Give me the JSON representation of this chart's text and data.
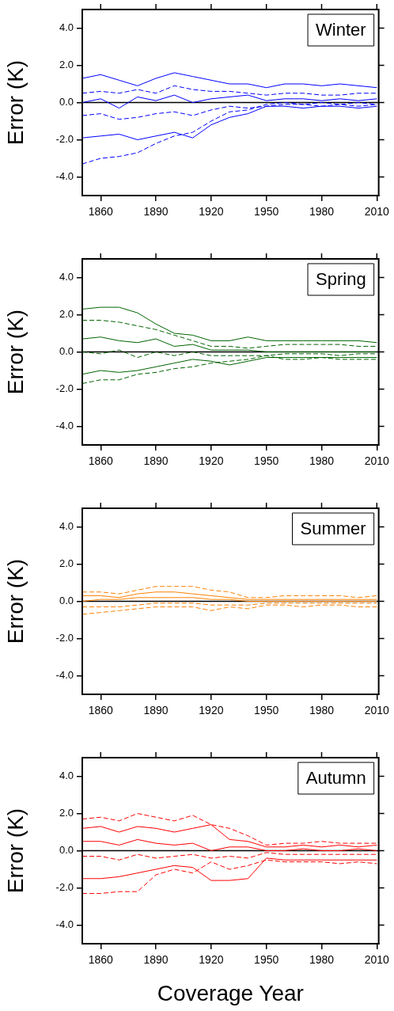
{
  "chart_data": [
    {
      "type": "line",
      "title": "Winter",
      "ylabel": "Error (K)",
      "xlim": [
        1850,
        2011
      ],
      "xticks": [
        1860,
        1890,
        1920,
        1950,
        1980,
        2010
      ],
      "ylim": [
        -5,
        5
      ],
      "yticks": [
        {
          "value": 4,
          "label": "4.0"
        },
        {
          "value": 2,
          "label": "2.0"
        },
        {
          "value": 0,
          "label": "0.0"
        },
        {
          "value": -2,
          "label": "-2.0"
        },
        {
          "value": -4,
          "label": "-4.0"
        }
      ],
      "grid": false,
      "legend": false,
      "ref_lines": [
        {
          "axis": "y",
          "value": 0,
          "color": "#000000"
        }
      ],
      "x": [
        1850,
        1860,
        1870,
        1880,
        1890,
        1900,
        1910,
        1920,
        1930,
        1940,
        1950,
        1960,
        1970,
        1980,
        1990,
        2000,
        2010
      ],
      "series": [
        {
          "color": "#0000ff",
          "line_style": "solid",
          "values": [
            1.3,
            1.5,
            1.2,
            0.9,
            1.3,
            1.6,
            1.4,
            1.2,
            1.0,
            1.0,
            0.8,
            1.0,
            1.0,
            0.9,
            1.0,
            0.9,
            0.8
          ]
        },
        {
          "color": "#0000ff",
          "line_style": "dashed",
          "values": [
            0.5,
            0.6,
            0.5,
            0.7,
            0.5,
            0.9,
            0.7,
            0.6,
            0.6,
            0.5,
            0.4,
            0.5,
            0.5,
            0.4,
            0.4,
            0.5,
            0.5
          ]
        },
        {
          "color": "#0000ff",
          "line_style": "solid",
          "values": [
            0,
            0.2,
            -0.3,
            0.3,
            0.1,
            0.4,
            0,
            0.2,
            0.3,
            0.4,
            0.1,
            0.2,
            0.2,
            0.1,
            0.2,
            0.1,
            0.2
          ]
        },
        {
          "color": "#0000ff",
          "line_style": "dashed",
          "values": [
            -0.7,
            -0.6,
            -0.9,
            -0.8,
            -0.6,
            -0.5,
            -0.7,
            -0.4,
            -0.2,
            -0.3,
            -0.2,
            -0.1,
            -0.1,
            -0.2,
            -0.1,
            -0.2,
            -0.1
          ]
        },
        {
          "color": "#0000ff",
          "line_style": "solid",
          "values": [
            -1.9,
            -1.8,
            -1.7,
            -2.0,
            -1.8,
            -1.6,
            -1.9,
            -1.2,
            -0.8,
            -0.6,
            -0.2,
            -0.2,
            -0.3,
            -0.2,
            -0.2,
            -0.3,
            -0.2
          ]
        },
        {
          "color": "#0000ff",
          "line_style": "dashed",
          "values": [
            -3.3,
            -3.0,
            -2.9,
            -2.7,
            -2.2,
            -1.8,
            -1.6,
            -1.0,
            -0.5,
            -0.4,
            -0.1,
            0,
            -0.1,
            0,
            -0.1,
            0,
            -0.1
          ]
        }
      ]
    },
    {
      "type": "line",
      "title": "Spring",
      "ylabel": "Error (K)",
      "xlim": [
        1850,
        2011
      ],
      "xticks": [
        1860,
        1890,
        1920,
        1950,
        1980,
        2010
      ],
      "ylim": [
        -5,
        5
      ],
      "yticks": [
        {
          "value": 4,
          "label": "4.0"
        },
        {
          "value": 2,
          "label": "2.0"
        },
        {
          "value": 0,
          "label": "0.0"
        },
        {
          "value": -2,
          "label": "-2.0"
        },
        {
          "value": -4,
          "label": "-4.0"
        }
      ],
      "grid": false,
      "legend": false,
      "ref_lines": [
        {
          "axis": "y",
          "value": 0,
          "color": "#000000"
        }
      ],
      "x": [
        1850,
        1860,
        1870,
        1880,
        1890,
        1900,
        1910,
        1920,
        1930,
        1940,
        1950,
        1960,
        1970,
        1980,
        1990,
        2000,
        2010
      ],
      "series": [
        {
          "color": "#006400",
          "line_style": "solid",
          "values": [
            2.3,
            2.4,
            2.4,
            2.1,
            1.5,
            1.0,
            0.9,
            0.6,
            0.6,
            0.8,
            0.6,
            0.6,
            0.6,
            0.6,
            0.6,
            0.6,
            0.5
          ]
        },
        {
          "color": "#006400",
          "line_style": "dashed",
          "values": [
            1.7,
            1.7,
            1.6,
            1.4,
            1.2,
            0.9,
            0.6,
            0.3,
            0.3,
            0.2,
            0.3,
            0.4,
            0.4,
            0.4,
            0.4,
            0.3,
            0.3
          ]
        },
        {
          "color": "#006400",
          "line_style": "solid",
          "values": [
            0.7,
            0.8,
            0.6,
            0.5,
            0.7,
            0.3,
            0.4,
            0.1,
            0.1,
            0.1,
            0,
            0,
            0,
            0,
            0,
            0,
            0
          ]
        },
        {
          "color": "#006400",
          "line_style": "dashed",
          "values": [
            0,
            -0.1,
            0.1,
            -0.3,
            0,
            -0.2,
            0,
            -0.2,
            -0.2,
            -0.2,
            -0.2,
            -0.1,
            -0.1,
            -0.1,
            -0.2,
            -0.1,
            -0.1
          ]
        },
        {
          "color": "#006400",
          "line_style": "solid",
          "values": [
            -1.2,
            -1.0,
            -1.1,
            -1.0,
            -0.8,
            -0.6,
            -0.4,
            -0.5,
            -0.7,
            -0.5,
            -0.3,
            -0.3,
            -0.3,
            -0.3,
            -0.3,
            -0.3,
            -0.3
          ]
        },
        {
          "color": "#006400",
          "line_style": "dashed",
          "values": [
            -1.7,
            -1.5,
            -1.5,
            -1.2,
            -1.1,
            -0.9,
            -0.8,
            -0.6,
            -0.5,
            -0.4,
            -0.2,
            -0.4,
            -0.4,
            -0.3,
            -0.4,
            -0.4,
            -0.4
          ]
        }
      ]
    },
    {
      "type": "line",
      "title": "Summer",
      "ylabel": "Error (K)",
      "xlim": [
        1850,
        2011
      ],
      "xticks": [
        1860,
        1890,
        1920,
        1950,
        1980,
        2010
      ],
      "ylim": [
        -5,
        5
      ],
      "yticks": [
        {
          "value": 4,
          "label": "4.0"
        },
        {
          "value": 2,
          "label": "2.0"
        },
        {
          "value": 0,
          "label": "0.0"
        },
        {
          "value": -2,
          "label": "-2.0"
        },
        {
          "value": -4,
          "label": "-4.0"
        }
      ],
      "grid": false,
      "legend": false,
      "ref_lines": [
        {
          "axis": "y",
          "value": 0,
          "color": "#000000"
        }
      ],
      "x": [
        1850,
        1860,
        1870,
        1880,
        1890,
        1900,
        1910,
        1920,
        1930,
        1940,
        1950,
        1960,
        1970,
        1980,
        1990,
        2000,
        2010
      ],
      "series": [
        {
          "color": "#ff8000",
          "line_style": "dashed",
          "values": [
            0.5,
            0.5,
            0.4,
            0.6,
            0.8,
            0.8,
            0.8,
            0.6,
            0.5,
            0.2,
            0.2,
            0.3,
            0.3,
            0.3,
            0.3,
            0.2,
            0.3
          ]
        },
        {
          "color": "#ff8000",
          "line_style": "solid",
          "values": [
            0.3,
            0.3,
            0.2,
            0.4,
            0.5,
            0.5,
            0.4,
            0.3,
            0.2,
            0.1,
            0.1,
            0.1,
            0.1,
            0.1,
            0.1,
            0.1,
            0.1
          ]
        },
        {
          "color": "#ff8000",
          "line_style": "solid",
          "values": [
            0,
            0.1,
            0.1,
            0.2,
            0.2,
            0.2,
            0.2,
            0.1,
            0.1,
            0,
            0,
            0,
            0,
            0,
            0,
            0,
            0
          ]
        },
        {
          "color": "#ff8000",
          "line_style": "dashed",
          "values": [
            -0.3,
            -0.3,
            -0.3,
            -0.2,
            -0.1,
            -0.1,
            -0.1,
            -0.2,
            -0.2,
            -0.2,
            -0.1,
            -0.1,
            -0.1,
            -0.1,
            -0.1,
            -0.1,
            -0.1
          ]
        },
        {
          "color": "#ff8000",
          "line_style": "dashed",
          "values": [
            -0.7,
            -0.6,
            -0.5,
            -0.4,
            -0.3,
            -0.3,
            -0.3,
            -0.5,
            -0.3,
            -0.4,
            -0.2,
            -0.2,
            -0.3,
            -0.2,
            -0.2,
            -0.3,
            -0.3
          ]
        }
      ]
    },
    {
      "type": "line",
      "title": "Autumn",
      "xlabel": "Coverage Year",
      "ylabel": "Error (K)",
      "xlim": [
        1850,
        2011
      ],
      "xticks": [
        1860,
        1890,
        1920,
        1950,
        1980,
        2010
      ],
      "ylim": [
        -5,
        5
      ],
      "yticks": [
        {
          "value": 4,
          "label": "4.0"
        },
        {
          "value": 2,
          "label": "2.0"
        },
        {
          "value": 0,
          "label": "0.0"
        },
        {
          "value": -2,
          "label": "-2.0"
        },
        {
          "value": -4,
          "label": "-4.0"
        }
      ],
      "grid": false,
      "legend": false,
      "ref_lines": [
        {
          "axis": "y",
          "value": 0,
          "color": "#000000"
        }
      ],
      "x": [
        1850,
        1860,
        1870,
        1880,
        1890,
        1900,
        1910,
        1920,
        1930,
        1940,
        1950,
        1960,
        1970,
        1980,
        1990,
        2000,
        2010
      ],
      "series": [
        {
          "color": "#ff0000",
          "line_style": "dashed",
          "values": [
            1.7,
            1.8,
            1.6,
            2.0,
            1.8,
            1.6,
            1.9,
            1.4,
            1.2,
            0.8,
            0.3,
            0.4,
            0.4,
            0.5,
            0.4,
            0.4,
            0.4
          ]
        },
        {
          "color": "#ff0000",
          "line_style": "solid",
          "values": [
            1.2,
            1.3,
            1.0,
            1.3,
            1.2,
            1.0,
            1.2,
            1.4,
            0.6,
            0.5,
            0.2,
            0.2,
            0.3,
            0.2,
            0.3,
            0.2,
            0.3
          ]
        },
        {
          "color": "#ff0000",
          "line_style": "solid",
          "values": [
            0.5,
            0.5,
            0.3,
            0.6,
            0.4,
            0.3,
            0.4,
            0,
            0.2,
            0.2,
            0,
            0,
            0.1,
            0,
            0,
            0.1,
            0
          ]
        },
        {
          "color": "#ff0000",
          "line_style": "dashed",
          "values": [
            -0.3,
            -0.3,
            -0.5,
            -0.2,
            -0.4,
            -0.3,
            -0.2,
            -0.4,
            -0.3,
            -0.4,
            -0.1,
            -0.2,
            -0.2,
            -0.2,
            -0.2,
            -0.2,
            -0.2
          ]
        },
        {
          "color": "#ff0000",
          "line_style": "solid",
          "values": [
            -1.5,
            -1.5,
            -1.4,
            -1.2,
            -1.0,
            -0.8,
            -0.9,
            -1.6,
            -1.6,
            -1.5,
            -0.4,
            -0.5,
            -0.5,
            -0.5,
            -0.5,
            -0.5,
            -0.5
          ]
        },
        {
          "color": "#ff0000",
          "line_style": "dashed",
          "values": [
            -2.3,
            -2.3,
            -2.2,
            -2.2,
            -1.3,
            -1.0,
            -1.2,
            -0.6,
            -1.0,
            -0.8,
            -0.5,
            -0.6,
            -0.6,
            -0.6,
            -0.7,
            -0.6,
            -0.7
          ]
        }
      ]
    }
  ]
}
